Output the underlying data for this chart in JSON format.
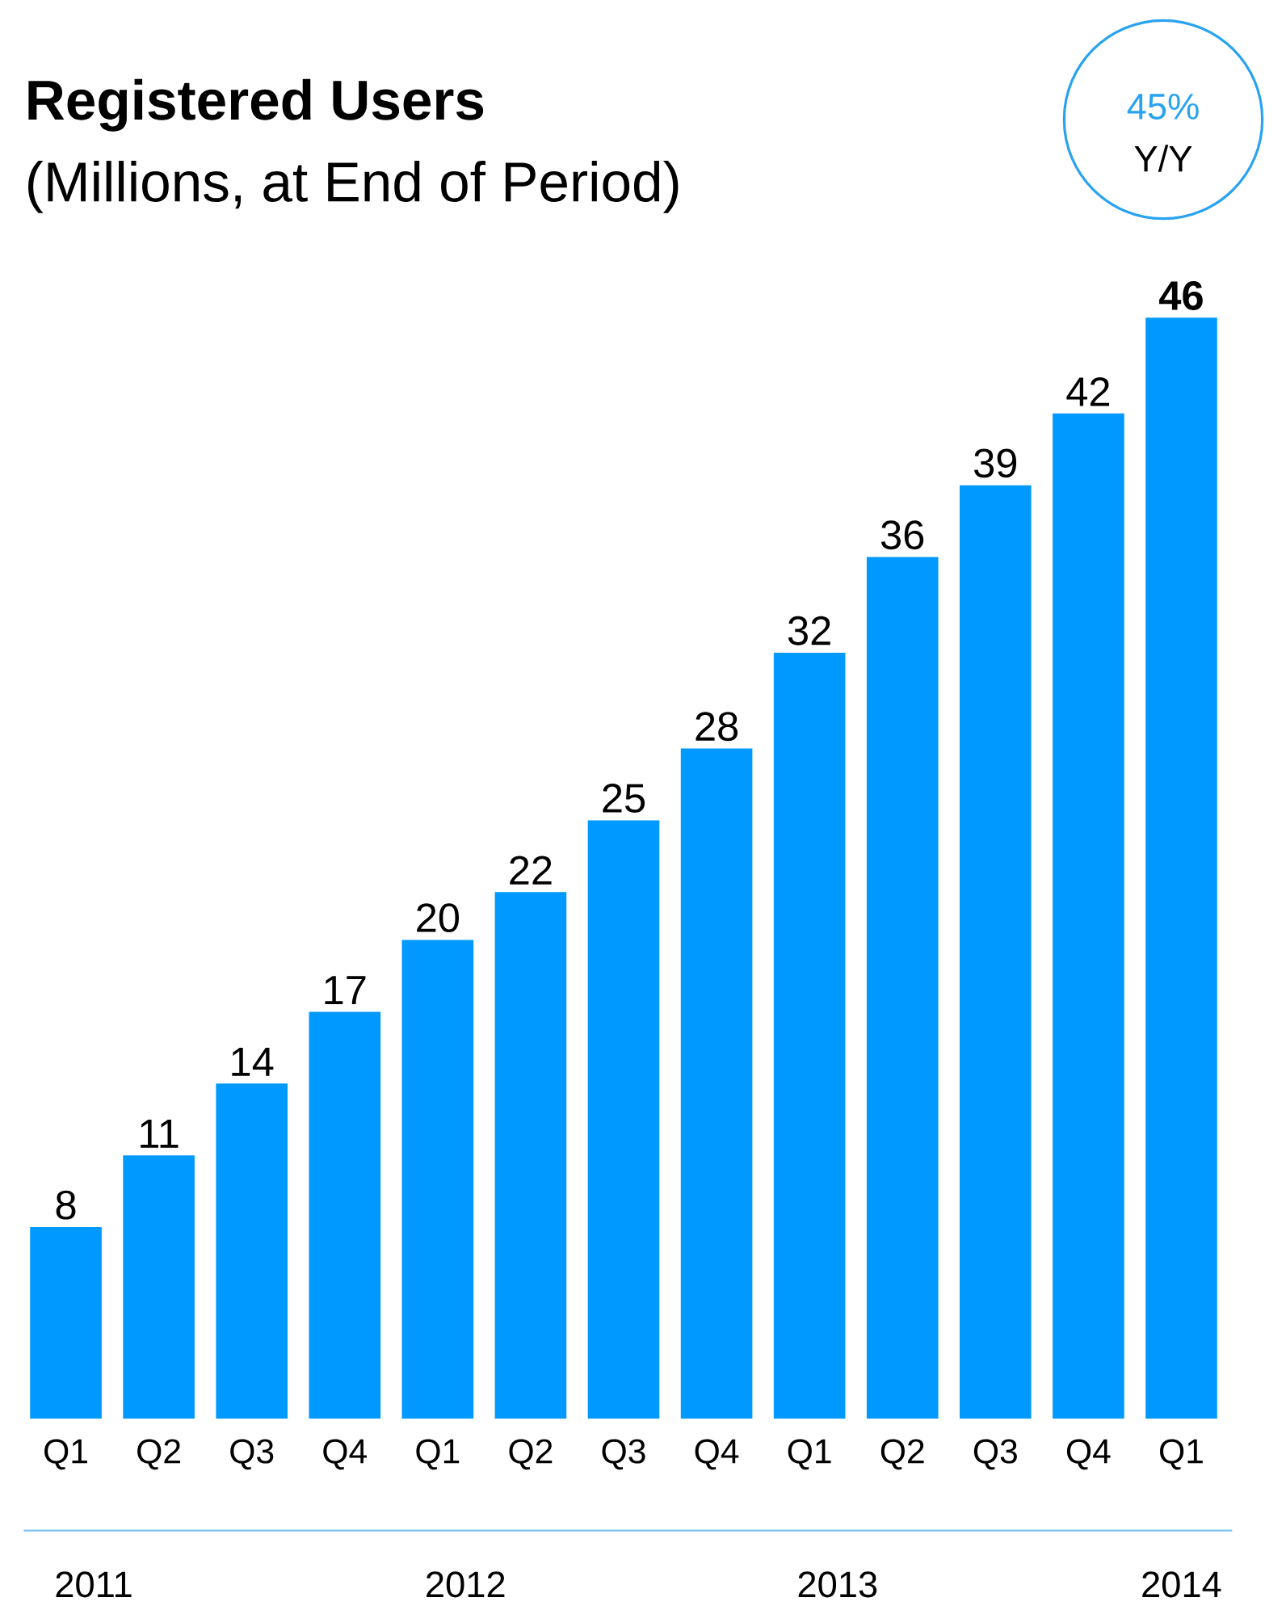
{
  "chart_data": {
    "type": "bar",
    "title": "Registered Users",
    "subtitle": "(Millions, at End of Period)",
    "categories": [
      "Q1",
      "Q2",
      "Q3",
      "Q4",
      "Q1",
      "Q2",
      "Q3",
      "Q4",
      "Q1",
      "Q2",
      "Q3",
      "Q4",
      "Q1"
    ],
    "values": [
      8,
      11,
      14,
      17,
      20,
      22,
      25,
      28,
      32,
      36,
      39,
      42,
      46
    ],
    "color": "#0099ff",
    "data_labels": true,
    "annotations": [
      "2011",
      "2012",
      "2013",
      "2014",
      "45%",
      "Y/Y"
    ]
  }
}
